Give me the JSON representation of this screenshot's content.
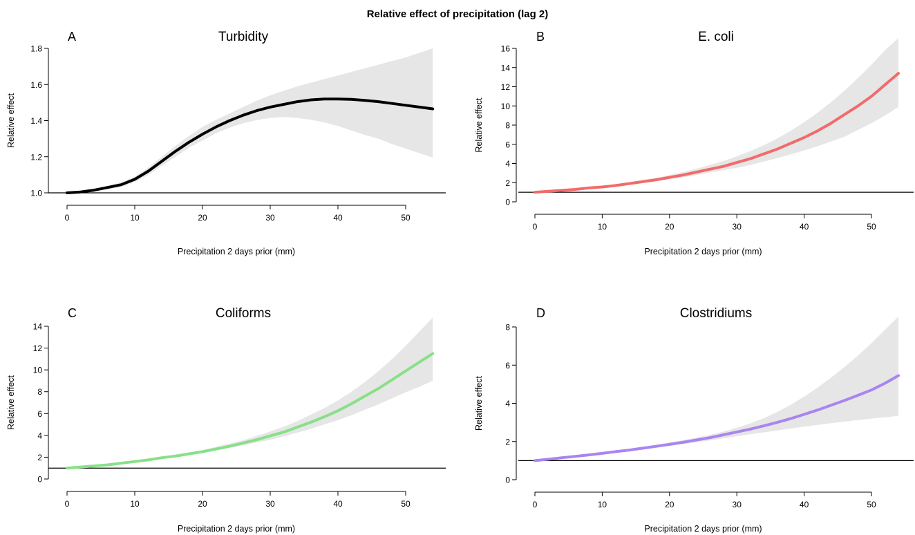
{
  "figure_title": "Relative effect of precipitation (lag 2)",
  "chart_data": [
    {
      "type": "line",
      "panel": "A",
      "title": "Turbidity",
      "xlabel": "Precipitation 2 days prior (mm)",
      "ylabel": "Relative effect",
      "xlim": [
        0,
        54
      ],
      "ylim": [
        1.0,
        1.8
      ],
      "xticks": [
        0,
        10,
        20,
        30,
        40,
        50
      ],
      "yticks": [
        1.0,
        1.2,
        1.4,
        1.6,
        1.8
      ],
      "ytick_labels": [
        "1.0",
        "1.2",
        "1.4",
        "1.6",
        "1.8"
      ],
      "reference_line": 1,
      "line_color": "#000000",
      "band_color": "#e6e6e6",
      "x": [
        0,
        2,
        4,
        6,
        8,
        10,
        12,
        14,
        16,
        18,
        20,
        22,
        24,
        26,
        28,
        30,
        32,
        34,
        36,
        38,
        40,
        42,
        44,
        46,
        48,
        50,
        52,
        54
      ],
      "y": [
        1.0,
        1.005,
        1.015,
        1.03,
        1.045,
        1.075,
        1.12,
        1.175,
        1.23,
        1.28,
        1.325,
        1.365,
        1.4,
        1.43,
        1.455,
        1.475,
        1.49,
        1.505,
        1.515,
        1.52,
        1.52,
        1.518,
        1.512,
        1.505,
        1.495,
        1.485,
        1.475,
        1.465
      ],
      "lower": [
        1.0,
        1.002,
        1.008,
        1.02,
        1.032,
        1.06,
        1.1,
        1.15,
        1.2,
        1.25,
        1.29,
        1.33,
        1.36,
        1.385,
        1.403,
        1.415,
        1.42,
        1.415,
        1.405,
        1.39,
        1.37,
        1.345,
        1.32,
        1.3,
        1.27,
        1.245,
        1.22,
        1.195
      ],
      "upper": [
        1.0,
        1.008,
        1.022,
        1.04,
        1.058,
        1.09,
        1.14,
        1.2,
        1.26,
        1.315,
        1.365,
        1.405,
        1.44,
        1.475,
        1.51,
        1.54,
        1.565,
        1.59,
        1.61,
        1.63,
        1.65,
        1.67,
        1.69,
        1.71,
        1.73,
        1.75,
        1.775,
        1.8
      ]
    },
    {
      "type": "line",
      "panel": "B",
      "title": "E. coli",
      "xlabel": "Precipitation 2 days prior (mm)",
      "ylabel": "Relative effect",
      "xlim": [
        0,
        54
      ],
      "ylim": [
        0,
        16
      ],
      "xticks": [
        0,
        10,
        20,
        30,
        40,
        50
      ],
      "yticks": [
        0,
        2,
        4,
        6,
        8,
        10,
        12,
        14,
        16
      ],
      "ytick_labels": [
        "0",
        "2",
        "4",
        "6",
        "8",
        "10",
        "12",
        "14",
        "16"
      ],
      "reference_line": 1,
      "line_color": "#f26b6b",
      "band_color": "#e6e6e6",
      "x": [
        0,
        2,
        4,
        6,
        8,
        10,
        12,
        14,
        16,
        18,
        20,
        22,
        24,
        26,
        28,
        30,
        32,
        34,
        36,
        38,
        40,
        42,
        44,
        46,
        48,
        50,
        52,
        54
      ],
      "y": [
        1.0,
        1.1,
        1.2,
        1.3,
        1.45,
        1.55,
        1.7,
        1.9,
        2.1,
        2.3,
        2.55,
        2.8,
        3.1,
        3.4,
        3.7,
        4.1,
        4.5,
        5.0,
        5.5,
        6.1,
        6.7,
        7.4,
        8.2,
        9.1,
        10.0,
        11.0,
        12.2,
        13.4
      ],
      "lower": [
        1.0,
        1.05,
        1.12,
        1.22,
        1.35,
        1.45,
        1.6,
        1.78,
        1.95,
        2.15,
        2.35,
        2.55,
        2.8,
        3.05,
        3.3,
        3.55,
        3.85,
        4.2,
        4.55,
        4.95,
        5.35,
        5.8,
        6.3,
        6.8,
        7.5,
        8.2,
        9.0,
        9.9
      ],
      "upper": [
        1.0,
        1.15,
        1.28,
        1.4,
        1.55,
        1.7,
        1.85,
        2.05,
        2.3,
        2.5,
        2.8,
        3.1,
        3.45,
        3.85,
        4.25,
        4.75,
        5.3,
        5.9,
        6.6,
        7.4,
        8.3,
        9.3,
        10.4,
        11.6,
        12.9,
        14.3,
        15.8,
        17.5
      ]
    },
    {
      "type": "line",
      "panel": "C",
      "title": "Coliforms",
      "xlabel": "Precipitation 2 days prior (mm)",
      "ylabel": "Relative effect",
      "xlim": [
        0,
        54
      ],
      "ylim": [
        0,
        14
      ],
      "xticks": [
        0,
        10,
        20,
        30,
        40,
        50
      ],
      "yticks": [
        0,
        2,
        4,
        6,
        8,
        10,
        12,
        14
      ],
      "ytick_labels": [
        "0",
        "2",
        "4",
        "6",
        "8",
        "10",
        "12",
        "14"
      ],
      "reference_line": 1,
      "line_color": "#88e088",
      "band_color": "#e6e6e6",
      "x": [
        0,
        2,
        4,
        6,
        8,
        10,
        12,
        14,
        16,
        18,
        20,
        22,
        24,
        26,
        28,
        30,
        32,
        34,
        36,
        38,
        40,
        42,
        44,
        46,
        48,
        50,
        52,
        54
      ],
      "y": [
        1.0,
        1.1,
        1.2,
        1.3,
        1.45,
        1.6,
        1.75,
        1.95,
        2.1,
        2.3,
        2.5,
        2.75,
        3.0,
        3.3,
        3.6,
        3.95,
        4.3,
        4.75,
        5.2,
        5.7,
        6.25,
        6.9,
        7.6,
        8.3,
        9.1,
        9.9,
        10.7,
        11.5
      ],
      "lower": [
        1.0,
        1.05,
        1.15,
        1.25,
        1.38,
        1.5,
        1.65,
        1.85,
        2.0,
        2.2,
        2.4,
        2.6,
        2.85,
        3.1,
        3.35,
        3.6,
        3.9,
        4.25,
        4.6,
        5.0,
        5.4,
        5.85,
        6.35,
        6.85,
        7.4,
        7.95,
        8.45,
        9.0
      ],
      "upper": [
        1.0,
        1.15,
        1.27,
        1.38,
        1.52,
        1.7,
        1.88,
        2.08,
        2.25,
        2.45,
        2.65,
        2.95,
        3.25,
        3.55,
        3.95,
        4.35,
        4.8,
        5.3,
        5.9,
        6.5,
        7.2,
        8.0,
        8.9,
        9.9,
        11.0,
        12.2,
        13.5,
        14.8
      ]
    },
    {
      "type": "line",
      "panel": "D",
      "title": "Clostridiums",
      "xlabel": "Precipitation 2 days prior (mm)",
      "ylabel": "Relative effect",
      "xlim": [
        0,
        54
      ],
      "ylim": [
        0,
        8
      ],
      "xticks": [
        0,
        10,
        20,
        30,
        40,
        50
      ],
      "yticks": [
        0,
        2,
        4,
        6,
        8
      ],
      "ytick_labels": [
        "0",
        "2",
        "4",
        "6",
        "8"
      ],
      "reference_line": 1,
      "line_color": "#a985ef",
      "band_color": "#e6e6e6",
      "x": [
        0,
        2,
        4,
        6,
        8,
        10,
        12,
        14,
        16,
        18,
        20,
        22,
        24,
        26,
        28,
        30,
        32,
        34,
        36,
        38,
        40,
        42,
        44,
        46,
        48,
        50,
        52,
        54
      ],
      "y": [
        1.0,
        1.07,
        1.15,
        1.22,
        1.3,
        1.38,
        1.47,
        1.55,
        1.65,
        1.75,
        1.85,
        1.96,
        2.08,
        2.2,
        2.35,
        2.5,
        2.65,
        2.82,
        3.0,
        3.2,
        3.42,
        3.65,
        3.9,
        4.15,
        4.42,
        4.7,
        5.05,
        5.45
      ],
      "lower": [
        1.0,
        1.04,
        1.1,
        1.16,
        1.24,
        1.32,
        1.4,
        1.48,
        1.57,
        1.67,
        1.77,
        1.86,
        1.96,
        2.06,
        2.16,
        2.27,
        2.38,
        2.48,
        2.58,
        2.68,
        2.78,
        2.87,
        2.96,
        3.04,
        3.12,
        3.2,
        3.27,
        3.35
      ],
      "upper": [
        1.0,
        1.1,
        1.2,
        1.28,
        1.37,
        1.45,
        1.54,
        1.63,
        1.73,
        1.83,
        1.95,
        2.07,
        2.2,
        2.35,
        2.52,
        2.72,
        2.95,
        3.22,
        3.55,
        3.92,
        4.35,
        4.82,
        5.35,
        5.9,
        6.5,
        7.15,
        7.85,
        8.6
      ]
    }
  ]
}
